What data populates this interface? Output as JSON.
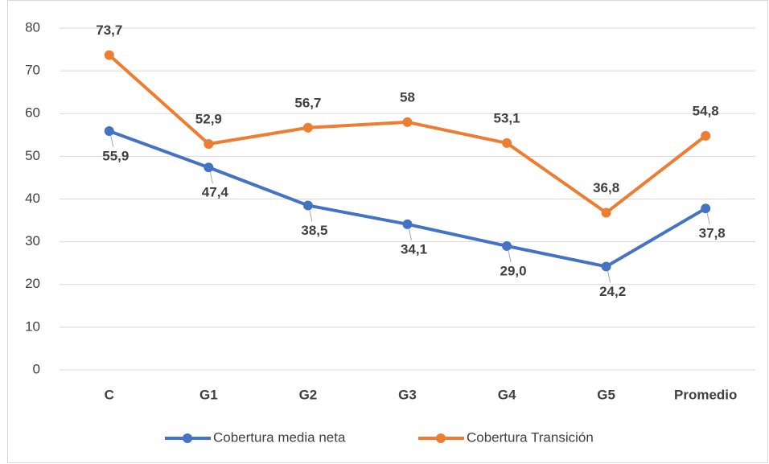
{
  "chart_data": {
    "type": "line",
    "categories": [
      "C",
      "G1",
      "G2",
      "G3",
      "G4",
      "G5",
      "Promedio"
    ],
    "series": [
      {
        "name": "Cobertura media neta",
        "color": "#4472c4",
        "values": [
          55.9,
          47.4,
          38.5,
          34.1,
          29.0,
          24.2,
          37.8
        ],
        "value_labels": [
          "55,9",
          "47,4",
          "38,5",
          "34,1",
          "29,0",
          "24,2",
          "37,8"
        ]
      },
      {
        "name": "Cobertura Transición",
        "color": "#ed7d31",
        "values": [
          73.7,
          52.9,
          56.7,
          58,
          53.1,
          36.8,
          54.8
        ],
        "value_labels": [
          "73,7",
          "52,9",
          "56,7",
          "58",
          "53,1",
          "36,8",
          "54,8"
        ]
      }
    ],
    "ylim": [
      0,
      80
    ],
    "yticks": [
      0,
      10,
      20,
      30,
      40,
      50,
      60,
      70,
      80
    ],
    "grid": true,
    "legend": "bottom"
  }
}
